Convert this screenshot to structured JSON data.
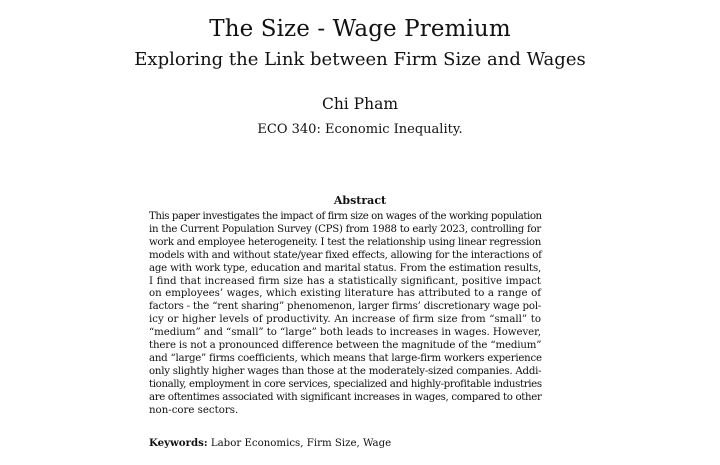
{
  "title": "The Size - Wage Premium",
  "subtitle": "Exploring the Link between Firm Size and Wages",
  "author": "Chi Pham",
  "course": "ECO 340: Economic Inequality.",
  "abstract": {
    "heading": "Abstract",
    "lines": [
      "This paper investigates the impact of firm size on wages of the working population",
      "in the Current Population Survey (CPS) from 1988 to early 2023, controlling for",
      "work and employee heterogeneity. I test the relationship using linear regression",
      "models with and without state/year fixed effects, allowing for the interactions of",
      "age with work type, education and marital status. From the estimation results,",
      "I find that increased firm size has a statistically significant, positive impact",
      "on employees’ wages, which existing literature has attributed to a range of",
      "factors - the “rent sharing” phenomenon, larger firms’ discretionary wage pol-",
      "icy or higher levels of productivity. An increase of firm size from “small” to",
      "“medium” and “small” to “large” both leads to increases in wages. However,",
      "there is not a pronounced difference between the magnitude of the “medium”",
      "and “large” firms coefficients, which means that large-firm workers experience",
      "only slightly higher wages than those at the moderately-sized companies. Addi-",
      "tionally, employment in core services, specialized and highly-profitable industries",
      "are oftentimes associated with significant increases in wages, compared to other",
      "non-core sectors."
    ]
  },
  "keywords": {
    "label": "Keywords:",
    "text": "Labor Economics, Firm Size, Wage"
  }
}
